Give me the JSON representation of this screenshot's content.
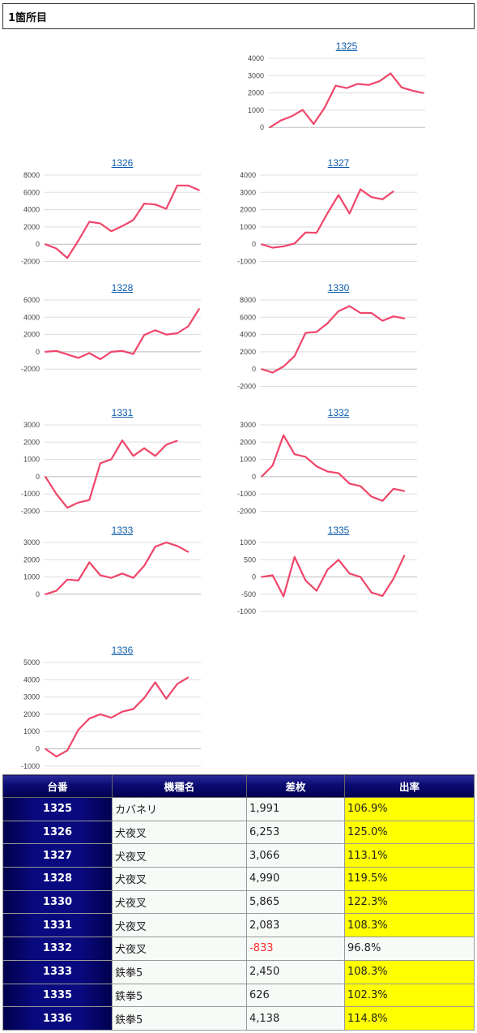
{
  "header": {
    "title": "1箇所目"
  },
  "colors": {
    "line": "#f0456a",
    "grid": "#dddddd",
    "link": "#0d5cad",
    "highlight": "#ffff00",
    "negative": "#ff2a2a",
    "header_bg": "#0a0a72"
  },
  "chart_data": [
    {
      "type": "line",
      "title": "1325",
      "ylim": [
        0,
        4000
      ],
      "yticks": [
        0,
        1000,
        2000,
        3000,
        4000
      ],
      "series": [
        {
          "values": [
            0,
            400,
            650,
            1020,
            200,
            1150,
            2420,
            2280,
            2520,
            2460,
            2680,
            3130,
            2320,
            2130,
            1991
          ]
        }
      ]
    },
    {
      "type": "line",
      "title": "1326",
      "ylim": [
        -2000,
        8000
      ],
      "yticks": [
        -2000,
        0,
        2000,
        4000,
        6000,
        8000
      ],
      "series": [
        {
          "values": [
            0,
            -500,
            -1600,
            400,
            2600,
            2400,
            1500,
            2100,
            2800,
            4700,
            4600,
            4100,
            6800,
            6800,
            6253
          ]
        }
      ]
    },
    {
      "type": "line",
      "title": "1327",
      "ylim": [
        -1000,
        4000
      ],
      "yticks": [
        -1000,
        0,
        1000,
        2000,
        3000,
        4000
      ],
      "series": [
        {
          "values": [
            0,
            -200,
            -120,
            40,
            680,
            660,
            1800,
            2850,
            1780,
            3180,
            2730,
            2600,
            3066
          ]
        }
      ]
    },
    {
      "type": "line",
      "title": "1328",
      "ylim": [
        -2000,
        6000
      ],
      "yticks": [
        -2000,
        0,
        2000,
        4000,
        6000
      ],
      "series": [
        {
          "values": [
            0,
            100,
            -300,
            -700,
            -150,
            -850,
            0,
            100,
            -250,
            1950,
            2500,
            2000,
            2150,
            2950,
            4990
          ]
        }
      ]
    },
    {
      "type": "line",
      "title": "1330",
      "ylim": [
        -2000,
        8000
      ],
      "yticks": [
        -2000,
        0,
        2000,
        4000,
        6000,
        8000
      ],
      "series": [
        {
          "values": [
            0,
            -400,
            300,
            1500,
            4200,
            4300,
            5300,
            6700,
            7300,
            6500,
            6500,
            5600,
            6100,
            5865
          ]
        }
      ]
    },
    {
      "type": "line",
      "title": "1331",
      "ylim": [
        -2000,
        3000
      ],
      "yticks": [
        -2000,
        -1000,
        0,
        1000,
        2000,
        3000
      ],
      "series": [
        {
          "values": [
            0,
            -1000,
            -1800,
            -1500,
            -1350,
            780,
            1000,
            2100,
            1200,
            1650,
            1200,
            1850,
            2083
          ]
        }
      ]
    },
    {
      "type": "line",
      "title": "1332",
      "ylim": [
        -2000,
        3000
      ],
      "yticks": [
        -2000,
        -1000,
        0,
        1000,
        2000,
        3000
      ],
      "series": [
        {
          "values": [
            0,
            650,
            2400,
            1300,
            1150,
            600,
            300,
            200,
            -400,
            -550,
            -1150,
            -1400,
            -700,
            -833
          ]
        }
      ]
    },
    {
      "type": "line",
      "title": "1333",
      "ylim": [
        0,
        3000
      ],
      "yticks": [
        0,
        1000,
        2000,
        3000
      ],
      "series": [
        {
          "values": [
            0,
            200,
            850,
            800,
            1850,
            1100,
            950,
            1200,
            950,
            1650,
            2750,
            3000,
            2800,
            2450
          ]
        }
      ]
    },
    {
      "type": "line",
      "title": "1335",
      "ylim": [
        -1000,
        1000
      ],
      "yticks": [
        -1000,
        -500,
        0,
        500,
        1000
      ],
      "series": [
        {
          "values": [
            0,
            50,
            -560,
            580,
            -100,
            -400,
            210,
            500,
            100,
            0,
            -450,
            -550,
            -50,
            626
          ]
        }
      ]
    },
    {
      "type": "line",
      "title": "1336",
      "ylim": [
        -1000,
        5000
      ],
      "yticks": [
        -1000,
        0,
        1000,
        2000,
        3000,
        4000,
        5000
      ],
      "series": [
        {
          "values": [
            0,
            -450,
            -100,
            1100,
            1750,
            2000,
            1800,
            2150,
            2300,
            2950,
            3850,
            2900,
            3750,
            4138
          ]
        }
      ]
    }
  ],
  "table": {
    "headers": [
      "台番",
      "機種名",
      "差枚",
      "出率"
    ],
    "rows": [
      {
        "num": "1325",
        "name": "カバネリ",
        "diff": "1,991",
        "rate": "106.9%",
        "negative": false,
        "high": true
      },
      {
        "num": "1326",
        "name": "犬夜叉",
        "diff": "6,253",
        "rate": "125.0%",
        "negative": false,
        "high": true
      },
      {
        "num": "1327",
        "name": "犬夜叉",
        "diff": "3,066",
        "rate": "113.1%",
        "negative": false,
        "high": true
      },
      {
        "num": "1328",
        "name": "犬夜叉",
        "diff": "4,990",
        "rate": "119.5%",
        "negative": false,
        "high": true
      },
      {
        "num": "1330",
        "name": "犬夜叉",
        "diff": "5,865",
        "rate": "122.3%",
        "negative": false,
        "high": true
      },
      {
        "num": "1331",
        "name": "犬夜叉",
        "diff": "2,083",
        "rate": "108.3%",
        "negative": false,
        "high": true
      },
      {
        "num": "1332",
        "name": "犬夜叉",
        "diff": "-833",
        "rate": "96.8%",
        "negative": true,
        "high": false
      },
      {
        "num": "1333",
        "name": "鉄拳5",
        "diff": "2,450",
        "rate": "108.3%",
        "negative": false,
        "high": true
      },
      {
        "num": "1335",
        "name": "鉄拳5",
        "diff": "626",
        "rate": "102.3%",
        "negative": false,
        "high": true
      },
      {
        "num": "1336",
        "name": "鉄拳5",
        "diff": "4,138",
        "rate": "114.8%",
        "negative": false,
        "high": true
      }
    ]
  }
}
